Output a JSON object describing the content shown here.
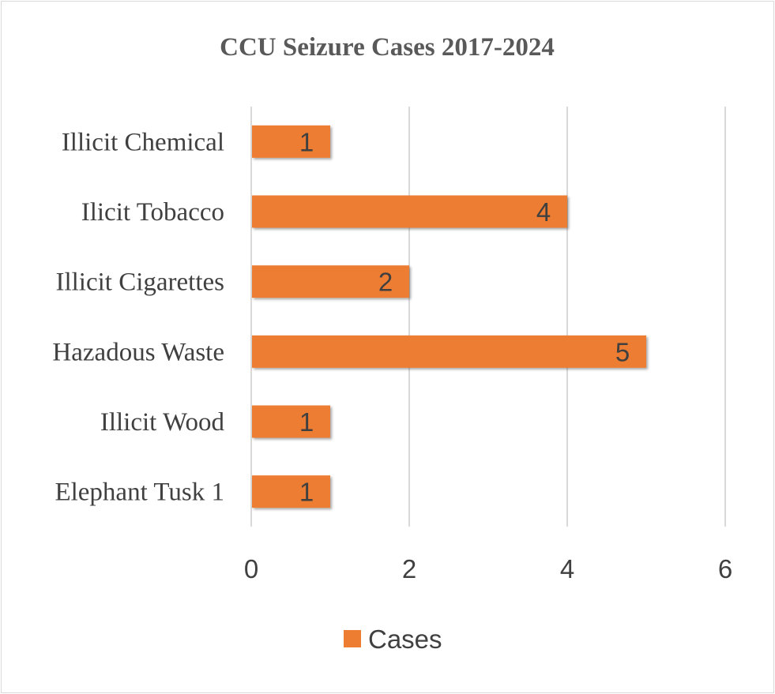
{
  "chart_data": {
    "type": "bar",
    "orientation": "horizontal",
    "title": "CCU Seizure Cases 2017-2024",
    "xlabel": "",
    "ylabel": "",
    "categories": [
      "Illicit Chemical",
      "Ilicit Tobacco",
      "Illicit Cigarettes",
      "Hazadous Waste",
      "Illicit Wood",
      "Elephant Tusk 1"
    ],
    "series": [
      {
        "name": "Cases",
        "values": [
          1,
          4,
          2,
          5,
          1,
          1
        ]
      }
    ],
    "xlim": [
      0,
      6
    ],
    "x_ticks": [
      0,
      2,
      4,
      6
    ],
    "grid": true,
    "legend": "bottom",
    "data_labels": true,
    "bar_color": "#ed7d31",
    "grid_color": "#d9d9d9"
  }
}
